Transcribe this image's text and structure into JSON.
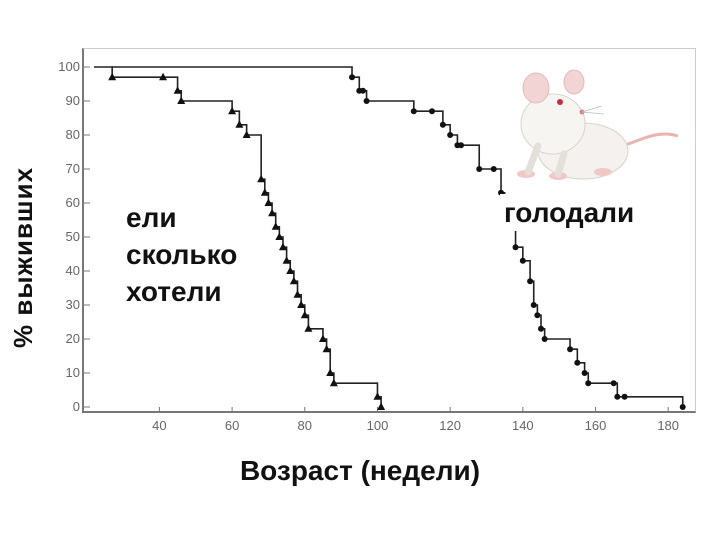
{
  "chart_data": {
    "type": "line",
    "title": "",
    "ylabel": "% выживших",
    "xlabel": "Возраст (недели)",
    "xlim": [
      22,
      186
    ],
    "ylim": [
      0,
      100
    ],
    "xticks": [
      40,
      60,
      80,
      100,
      120,
      140,
      160,
      180
    ],
    "yticks": [
      0,
      10,
      20,
      30,
      40,
      50,
      60,
      70,
      80,
      90,
      100
    ],
    "grid": false,
    "annotations": [
      {
        "id": "left",
        "lines": [
          "ели",
          "сколько",
          "хотели"
        ]
      },
      {
        "id": "right",
        "lines": [
          "голодали"
        ]
      }
    ],
    "series": [
      {
        "marker": "triangle",
        "x": [
          22,
          27,
          41,
          45,
          46,
          60,
          62,
          64,
          68,
          69,
          70,
          71,
          72,
          73,
          74,
          75,
          76,
          77,
          78,
          79,
          80,
          81,
          85,
          86,
          87,
          88,
          100,
          101
        ],
        "y": [
          100,
          97,
          97,
          93,
          90,
          87,
          83,
          80,
          67,
          63,
          60,
          57,
          53,
          50,
          47,
          43,
          40,
          37,
          33,
          30,
          27,
          23,
          20,
          17,
          10,
          7,
          3,
          0
        ]
      },
      {
        "marker": "circle",
        "x": [
          27,
          93,
          95,
          96,
          97,
          110,
          115,
          118,
          120,
          122,
          123,
          128,
          132,
          134,
          135,
          137,
          138,
          140,
          142,
          143,
          144,
          145,
          146,
          153,
          155,
          157,
          158,
          165,
          166,
          168,
          184
        ],
        "y": [
          100,
          97,
          93,
          93,
          90,
          87,
          87,
          83,
          80,
          77,
          77,
          70,
          70,
          63,
          60,
          53,
          47,
          43,
          37,
          30,
          27,
          23,
          20,
          17,
          13,
          10,
          7,
          7,
          3,
          3,
          0
        ]
      }
    ]
  }
}
